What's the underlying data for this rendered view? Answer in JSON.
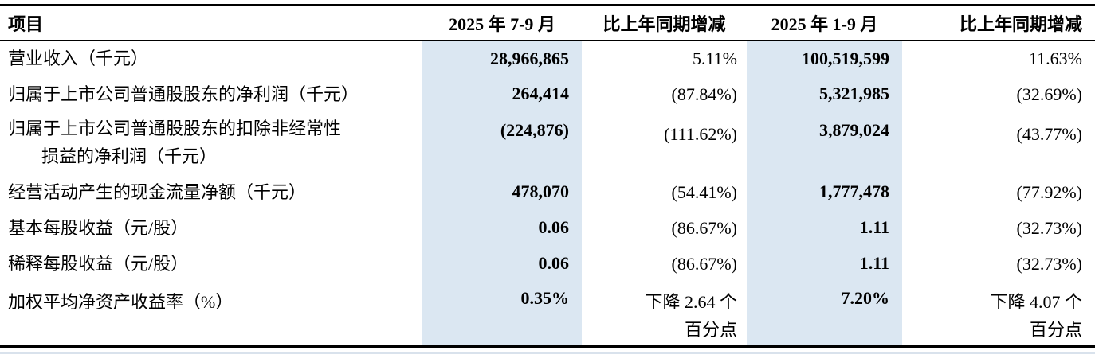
{
  "colors": {
    "highlight_bg": "#dbe7f2",
    "border": "#000000",
    "hairline": "#d9e2ec"
  },
  "table": {
    "headers": {
      "item": "项目",
      "q3_period": "2025 年 7-9 月",
      "q3_change": "比上年同期增减",
      "ytd_period": "2025 年 1-9 月",
      "ytd_change": "比上年同期增减"
    },
    "rows": [
      {
        "label": "营业收入（千元）",
        "q3": "28,966,865",
        "q3_change": "5.11%",
        "ytd": "100,519,599",
        "ytd_change": "11.63%"
      },
      {
        "label": "归属于上市公司普通股股东的净利润（千元）",
        "q3": "264,414",
        "q3_change": "(87.84%)",
        "ytd": "5,321,985",
        "ytd_change": "(32.69%)"
      },
      {
        "label": "归属于上市公司普通股股东的扣除非经常性\n损益的净利润（千元）",
        "q3": "(224,876)",
        "q3_change": "(111.62%)",
        "ytd": "3,879,024",
        "ytd_change": "(43.77%)"
      },
      {
        "label": "经营活动产生的现金流量净额（千元）",
        "q3": "478,070",
        "q3_change": "(54.41%)",
        "ytd": "1,777,478",
        "ytd_change": "(77.92%)"
      },
      {
        "label": "基本每股收益（元/股）",
        "q3": "0.06",
        "q3_change": "(86.67%)",
        "ytd": "1.11",
        "ytd_change": "(32.73%)"
      },
      {
        "label": "稀释每股收益（元/股）",
        "q3": "0.06",
        "q3_change": "(86.67%)",
        "ytd": "1.11",
        "ytd_change": "(32.73%)"
      },
      {
        "label": "加权平均净资产收益率（%）",
        "q3": "0.35%",
        "q3_change": "下降 2.64 个\n百分点",
        "ytd": "7.20%",
        "ytd_change": "下降 4.07 个\n百分点"
      }
    ]
  }
}
